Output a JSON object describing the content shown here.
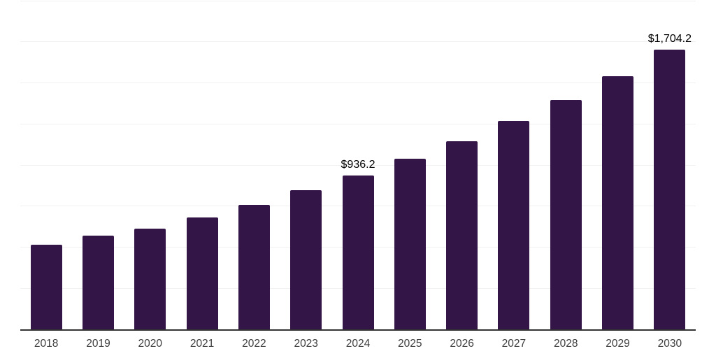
{
  "chart_data": {
    "type": "bar",
    "title": "",
    "xlabel": "",
    "ylabel": "",
    "categories": [
      "2018",
      "2019",
      "2020",
      "2021",
      "2022",
      "2023",
      "2024",
      "2025",
      "2026",
      "2027",
      "2028",
      "2029",
      "2030"
    ],
    "values": [
      515,
      570,
      613,
      681,
      757,
      847,
      936.2,
      1038,
      1145,
      1268,
      1396,
      1540,
      1704.2
    ],
    "value_labels": [
      "",
      "",
      "",
      "",
      "",
      "",
      "$936.2",
      "",
      "",
      "",
      "",
      "",
      "$1,704.2"
    ],
    "ylim": [
      0,
      2000
    ],
    "gridline_step": 250,
    "grid": "horizontal",
    "legend": "none",
    "bar_color": "#331547",
    "axis_line_color": "#333333",
    "gridline_color": "#f1f1f1",
    "value_label_color": "#000000",
    "tick_label_color": "#3d3d3d"
  }
}
